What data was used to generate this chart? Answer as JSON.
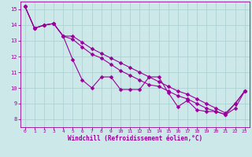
{
  "xlabel": "Windchill (Refroidissement éolien,°C)",
  "xlim": [
    -0.5,
    23.5
  ],
  "ylim": [
    7.5,
    15.5
  ],
  "yticks": [
    8,
    9,
    10,
    11,
    12,
    13,
    14,
    15
  ],
  "xticks": [
    0,
    1,
    2,
    3,
    4,
    5,
    6,
    7,
    8,
    9,
    10,
    11,
    12,
    13,
    14,
    15,
    16,
    17,
    18,
    19,
    20,
    21,
    22,
    23
  ],
  "line_color": "#990099",
  "bg_color": "#cce8e8",
  "grid_color": "#aacece",
  "line1": [
    15.2,
    13.8,
    14.0,
    14.1,
    13.3,
    11.8,
    10.5,
    10.0,
    10.7,
    10.7,
    9.9,
    9.9,
    9.9,
    10.7,
    10.7,
    9.7,
    8.8,
    9.2,
    8.6,
    8.5,
    8.5,
    8.3,
    8.7,
    9.8
  ],
  "line2": [
    15.2,
    13.8,
    14.0,
    14.1,
    13.3,
    13.1,
    12.6,
    12.15,
    11.9,
    11.5,
    11.1,
    10.8,
    10.5,
    10.2,
    10.1,
    9.8,
    9.5,
    9.3,
    9.0,
    8.7,
    8.5,
    8.3,
    9.0,
    9.8
  ],
  "line3": [
    15.2,
    13.8,
    14.0,
    14.1,
    13.3,
    13.3,
    12.9,
    12.5,
    12.2,
    11.9,
    11.6,
    11.3,
    11.0,
    10.7,
    10.4,
    10.1,
    9.8,
    9.6,
    9.3,
    9.0,
    8.7,
    8.4,
    9.0,
    9.8
  ]
}
